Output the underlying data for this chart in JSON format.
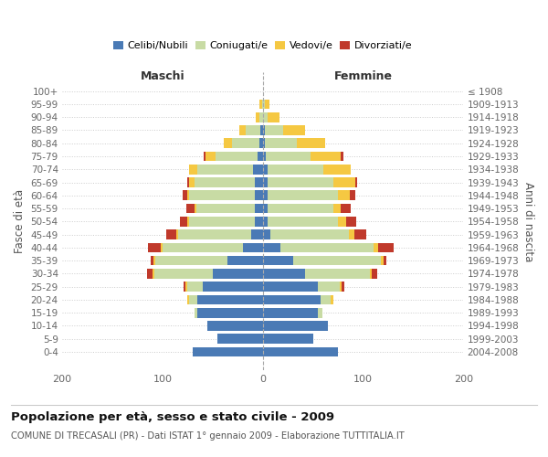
{
  "age_groups": [
    "100+",
    "95-99",
    "90-94",
    "85-89",
    "80-84",
    "75-79",
    "70-74",
    "65-69",
    "60-64",
    "55-59",
    "50-54",
    "45-49",
    "40-44",
    "35-39",
    "30-34",
    "25-29",
    "20-24",
    "15-19",
    "10-14",
    "5-9",
    "0-4"
  ],
  "birth_years": [
    "≤ 1908",
    "1909-1913",
    "1914-1918",
    "1919-1923",
    "1924-1928",
    "1929-1933",
    "1934-1938",
    "1939-1943",
    "1944-1948",
    "1949-1953",
    "1954-1958",
    "1959-1963",
    "1964-1968",
    "1969-1973",
    "1974-1978",
    "1979-1983",
    "1984-1988",
    "1989-1993",
    "1994-1998",
    "1999-2003",
    "2004-2008"
  ],
  "maschi": {
    "celibi": [
      0,
      0,
      0,
      2,
      3,
      5,
      10,
      8,
      8,
      8,
      8,
      12,
      20,
      35,
      50,
      60,
      65,
      65,
      55,
      45,
      70
    ],
    "coniugati": [
      0,
      1,
      3,
      15,
      28,
      42,
      55,
      60,
      65,
      58,
      65,
      72,
      80,
      72,
      58,
      15,
      8,
      3,
      0,
      0,
      0
    ],
    "vedovi": [
      0,
      2,
      4,
      6,
      8,
      10,
      8,
      5,
      2,
      2,
      2,
      2,
      2,
      2,
      2,
      2,
      2,
      0,
      0,
      0,
      0
    ],
    "divorziati": [
      0,
      0,
      0,
      0,
      0,
      2,
      0,
      2,
      5,
      8,
      8,
      10,
      12,
      3,
      5,
      2,
      0,
      0,
      0,
      0,
      0
    ]
  },
  "femmine": {
    "nubili": [
      0,
      0,
      0,
      2,
      2,
      3,
      5,
      5,
      5,
      5,
      5,
      8,
      18,
      30,
      42,
      55,
      58,
      55,
      65,
      50,
      75
    ],
    "coniugate": [
      0,
      2,
      5,
      18,
      32,
      45,
      55,
      65,
      70,
      65,
      70,
      78,
      92,
      88,
      65,
      22,
      10,
      4,
      0,
      0,
      0
    ],
    "vedove": [
      0,
      5,
      12,
      22,
      28,
      30,
      28,
      22,
      12,
      8,
      8,
      5,
      5,
      2,
      2,
      2,
      2,
      0,
      0,
      0,
      0
    ],
    "divorziate": [
      0,
      0,
      0,
      0,
      0,
      2,
      0,
      2,
      5,
      10,
      10,
      12,
      15,
      3,
      5,
      2,
      0,
      0,
      0,
      0,
      0
    ]
  },
  "colors": {
    "celibi": "#4a7ab5",
    "coniugati": "#c8dba4",
    "vedovi": "#f5c842",
    "divorziati": "#c0392b"
  },
  "title": "Popolazione per età, sesso e stato civile - 2009",
  "subtitle": "COMUNE DI TRECASALI (PR) - Dati ISTAT 1° gennaio 2009 - Elaborazione TUTTITALIA.IT",
  "xlabel_left": "Maschi",
  "xlabel_right": "Femmine",
  "ylabel_left": "Fasce di età",
  "ylabel_right": "Anni di nascita",
  "xlim": 200,
  "background_color": "#ffffff",
  "legend_labels": [
    "Celibi/Nubili",
    "Coniugati/e",
    "Vedovi/e",
    "Divorziati/e"
  ]
}
